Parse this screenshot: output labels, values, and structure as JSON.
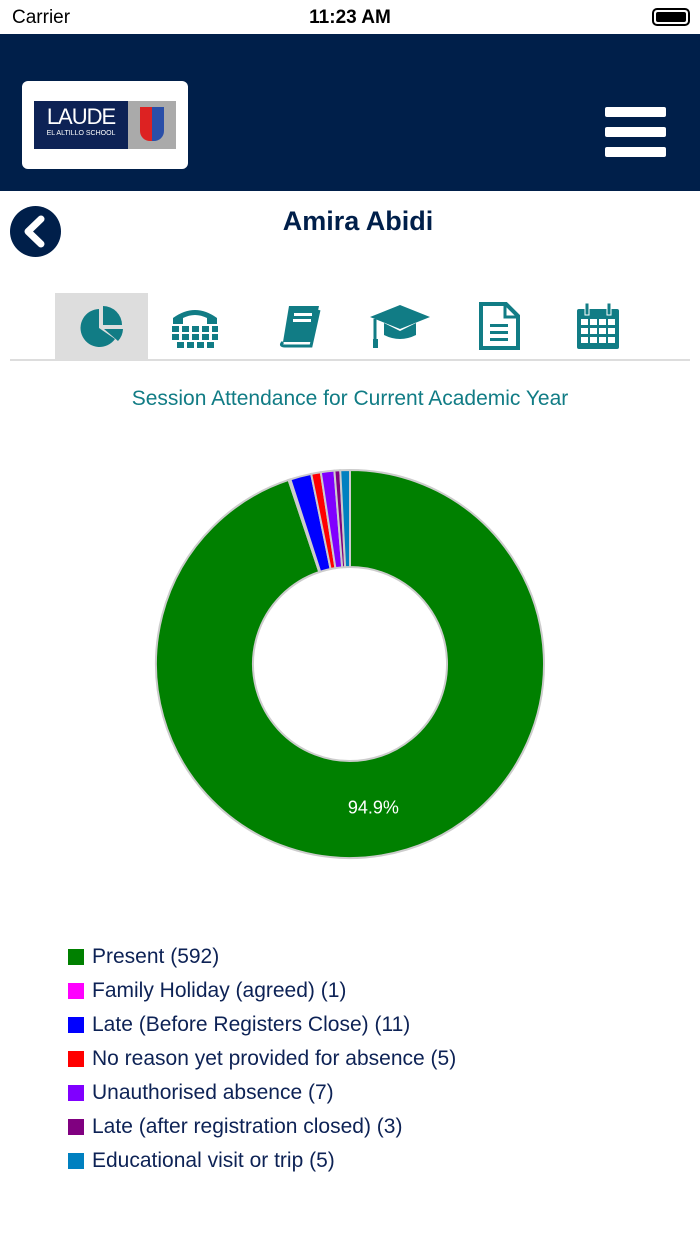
{
  "status": {
    "carrier": "Carrier",
    "time": "11:23 AM"
  },
  "logo": {
    "text": "LAUDE",
    "subtext": "EL ALTILLO SCHOOL"
  },
  "student": {
    "name": "Amira Abidi"
  },
  "tabs": [
    {
      "icon": "pie-chart-icon",
      "active": true
    },
    {
      "icon": "phone-icon"
    },
    {
      "icon": "book-icon"
    },
    {
      "icon": "graduation-cap-icon"
    },
    {
      "icon": "document-icon"
    },
    {
      "icon": "calendar-icon"
    }
  ],
  "accent": "#117c85",
  "chart_data": {
    "type": "pie",
    "variant": "donut",
    "title": "Session Attendance for Current Academic Year",
    "series": [
      {
        "name": "Present",
        "value": 592,
        "color": "#008000",
        "label": "94.9%"
      },
      {
        "name": "Family Holiday (agreed)",
        "value": 1,
        "color": "#ff00ff"
      },
      {
        "name": "Late (Before Registers Close)",
        "value": 11,
        "color": "#0000ff"
      },
      {
        "name": "No reason yet provided for absence",
        "value": 5,
        "color": "#ff0000"
      },
      {
        "name": "Unauthorised absence",
        "value": 7,
        "color": "#8000ff"
      },
      {
        "name": "Late (after registration closed)",
        "value": 3,
        "color": "#800080"
      },
      {
        "name": "Educational visit or trip",
        "value": 5,
        "color": "#0080c0"
      }
    ],
    "legend": [
      "Present (592)",
      "Family Holiday (agreed) (1)",
      "Late (Before Registers Close) (11)",
      "No reason yet provided for absence (5)",
      "Unauthorised absence (7)",
      "Late (after registration closed) (3)",
      "Educational visit or trip (5)"
    ],
    "legend_position": "bottom-left"
  }
}
